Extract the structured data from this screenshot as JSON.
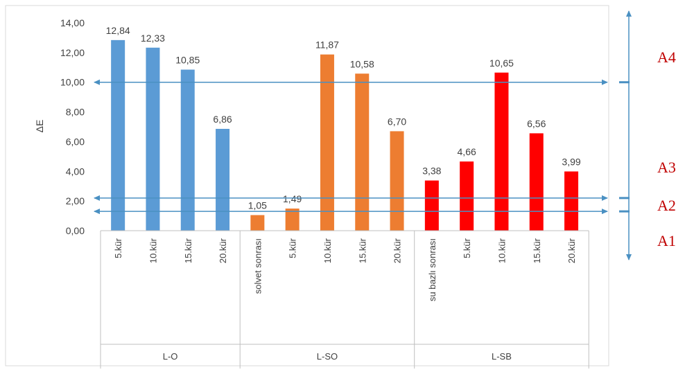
{
  "chart_data": {
    "type": "bar",
    "ylabel": "ΔE",
    "ylim": [
      0,
      14
    ],
    "yticks": [
      "0,00",
      "2,00",
      "4,00",
      "6,00",
      "8,00",
      "10,00",
      "12,00",
      "14,00"
    ],
    "grid": false,
    "groups": [
      {
        "name": "L-O",
        "color": "#5B9BD5",
        "categories": [
          "5.kür",
          "10.kür",
          "15.kür",
          "20.kür"
        ],
        "values": [
          12.84,
          12.33,
          10.85,
          6.86
        ],
        "labels": [
          "12,84",
          "12,33",
          "10,85",
          "6,86"
        ]
      },
      {
        "name": "L-SO",
        "color": "#ED7D31",
        "categories": [
          "solvet sonrası",
          "5.kür",
          "10.kür",
          "15.kür",
          "20.kür"
        ],
        "values": [
          1.05,
          1.49,
          11.87,
          10.58,
          6.7
        ],
        "labels": [
          "1,05",
          "1,49",
          "11,87",
          "10,58",
          "6,70"
        ]
      },
      {
        "name": "L-SB",
        "color": "#FF0000",
        "categories": [
          "su bazlı sonrası",
          "5.kür",
          "10.kür",
          "15.kür",
          "20.kür"
        ],
        "values": [
          3.38,
          4.66,
          10.65,
          6.56,
          3.99
        ],
        "labels": [
          "3,38",
          "4,66",
          "10,65",
          "6,56",
          "3,99"
        ]
      }
    ],
    "reference_lines": [
      {
        "value": 10.0,
        "label": "A4"
      },
      {
        "value": 2.2,
        "label": "A2"
      },
      {
        "value": 1.3,
        "label": "A1"
      }
    ],
    "side_labels": [
      {
        "label": "A4",
        "value": 10.0
      },
      {
        "label": "A3",
        "value": 3.4
      },
      {
        "label": "A2",
        "value": 2.2
      },
      {
        "label": "A1",
        "value": 1.0
      }
    ],
    "colors": {
      "arrow": "#4A90C2",
      "side_text": "#C00000",
      "frame": "#D9D9D9",
      "divider": "#BFBFBF"
    }
  }
}
